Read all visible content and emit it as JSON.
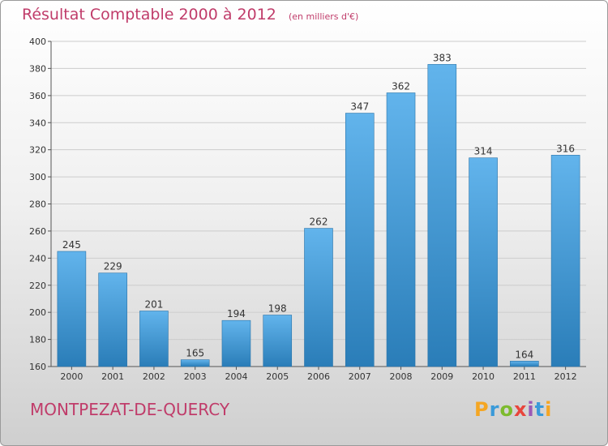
{
  "title": "Résultat Comptable 2000 à 2012",
  "subtitle": "(en milliers d'€)",
  "location": "MONTPEZAT-DE-QUERCY",
  "brand": {
    "letters": [
      "P",
      "r",
      "o",
      "x",
      "i",
      "t",
      "i"
    ],
    "colors": [
      "#f5a623",
      "#3a9ad9",
      "#7dbb2e",
      "#e8453c",
      "#9b59b6",
      "#3a9ad9",
      "#f5a623"
    ]
  },
  "colors": {
    "bar_light": "#62b4ec",
    "bar_dark": "#2a7db8",
    "title": "#c03c6a",
    "grid": "#cccccc"
  },
  "chart_data": {
    "type": "bar",
    "categories": [
      "2000",
      "2001",
      "2002",
      "2003",
      "2004",
      "2005",
      "2006",
      "2007",
      "2008",
      "2009",
      "2010",
      "2011",
      "2012"
    ],
    "values": [
      245,
      229,
      201,
      165,
      194,
      198,
      262,
      347,
      362,
      383,
      314,
      164,
      316
    ],
    "ylim": [
      160,
      400
    ],
    "yticks": [
      160,
      180,
      200,
      220,
      240,
      260,
      280,
      300,
      320,
      340,
      360,
      380,
      400
    ],
    "grid": true,
    "data_labels": true
  }
}
